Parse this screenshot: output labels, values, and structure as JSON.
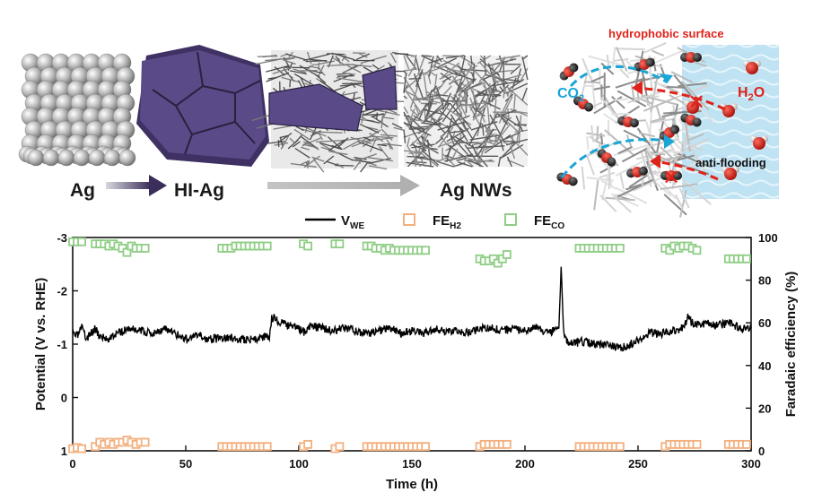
{
  "schematic": {
    "material_labels": [
      "Ag",
      "HI-Ag",
      "Ag NWs"
    ],
    "surface_label": "hydrophobic surface",
    "co2_label": "CO",
    "co2_sub": "2",
    "h2o_label": "H",
    "h2o_sub": "2",
    "h2o_tail": "O",
    "flooding_label": "anti-flooding",
    "colors": {
      "co2": "#19a6d6",
      "h2o": "#e0231a",
      "surface": "#e0231a",
      "purple": "#5b4a88",
      "water": "#bfe3f3"
    }
  },
  "chart_data": {
    "type": "line",
    "xlabel": "Time (h)",
    "ylabel_left": "Potential (V vs. RHE)",
    "ylabel_right": "Faradaic efficiency (%)",
    "xlim": [
      0,
      300
    ],
    "ylim_left": [
      1,
      -3
    ],
    "ylim_right": [
      0,
      100
    ],
    "x_ticks": [
      0,
      50,
      100,
      150,
      200,
      250,
      300
    ],
    "y_ticks_left": [
      1,
      0,
      -1,
      -2,
      -3
    ],
    "y_ticks_left_labels": [
      "1",
      "0",
      "-1",
      "-2",
      "-3"
    ],
    "y_ticks_right": [
      0,
      20,
      40,
      60,
      80,
      100
    ],
    "legend": [
      {
        "name": "V",
        "sub": "WE",
        "marker": "line",
        "color": "#000000"
      },
      {
        "name": "FE",
        "sub": "H2",
        "marker": "square",
        "color": "#f3b07f"
      },
      {
        "name": "FE",
        "sub": "CO",
        "marker": "square",
        "color": "#8fce85"
      }
    ],
    "legend_position": "top-center",
    "series": [
      {
        "name": "VWE",
        "axis": "left",
        "color": "#000000",
        "x": [
          0,
          2,
          4,
          6,
          8,
          10,
          12,
          15,
          20,
          25,
          30,
          35,
          40,
          45,
          50,
          55,
          60,
          65,
          70,
          75,
          80,
          85,
          87,
          88,
          90,
          95,
          100,
          103,
          105,
          110,
          115,
          120,
          125,
          130,
          135,
          140,
          145,
          150,
          155,
          160,
          165,
          170,
          175,
          180,
          185,
          190,
          195,
          200,
          205,
          210,
          215,
          216,
          217,
          218,
          220,
          225,
          230,
          235,
          240,
          245,
          250,
          255,
          260,
          265,
          270,
          272,
          275,
          280,
          285,
          290,
          295,
          300
        ],
        "y": [
          -1.2,
          -1.15,
          -1.3,
          -1.1,
          -1.2,
          -1.3,
          -1.15,
          -1.1,
          -1.2,
          -1.3,
          -1.25,
          -1.2,
          -1.3,
          -1.2,
          -1.1,
          -1.15,
          -1.1,
          -1.1,
          -1.12,
          -1.08,
          -1.1,
          -1.12,
          -1.15,
          -1.5,
          -1.45,
          -1.35,
          -1.3,
          -1.2,
          -1.35,
          -1.3,
          -1.25,
          -1.3,
          -1.25,
          -1.2,
          -1.25,
          -1.3,
          -1.2,
          -1.25,
          -1.2,
          -1.3,
          -1.2,
          -1.25,
          -1.2,
          -1.3,
          -1.3,
          -1.25,
          -1.3,
          -1.25,
          -1.3,
          -1.2,
          -1.3,
          -2.45,
          -1.3,
          -1.1,
          -1.0,
          -1.05,
          -1.0,
          -1.0,
          -0.95,
          -0.95,
          -1.1,
          -1.2,
          -1.2,
          -1.25,
          -1.3,
          -1.5,
          -1.35,
          -1.4,
          -1.35,
          -1.4,
          -1.3,
          -1.3
        ]
      },
      {
        "name": "FEH2",
        "axis": "right",
        "color": "#f3b07f",
        "x": [
          0,
          2,
          4,
          10,
          12,
          14,
          16,
          18,
          20,
          22,
          24,
          26,
          28,
          30,
          32,
          66,
          68,
          70,
          72,
          74,
          76,
          78,
          80,
          82,
          84,
          86,
          102,
          104,
          116,
          118,
          130,
          132,
          134,
          136,
          138,
          140,
          142,
          144,
          146,
          148,
          150,
          152,
          154,
          156,
          180,
          182,
          184,
          186,
          188,
          190,
          192,
          224,
          226,
          228,
          230,
          232,
          234,
          236,
          238,
          240,
          242,
          262,
          264,
          266,
          268,
          270,
          272,
          274,
          276,
          290,
          292,
          294,
          296,
          298
        ],
        "y": [
          1,
          1.5,
          1,
          2,
          4,
          3,
          4,
          3,
          4,
          4,
          5,
          4,
          3,
          4,
          4,
          2,
          2,
          2,
          2,
          2,
          2,
          2,
          2,
          2,
          2,
          2,
          2,
          3,
          1,
          2,
          2,
          2,
          2,
          2,
          2,
          2,
          2,
          2,
          2,
          2,
          2,
          2,
          2,
          2,
          2,
          3,
          3,
          3,
          3,
          3,
          3,
          2,
          2,
          2,
          2,
          2,
          2,
          2,
          2,
          2,
          2,
          2,
          3,
          3,
          3,
          3,
          3,
          3,
          3,
          3,
          3,
          3,
          3,
          3
        ]
      },
      {
        "name": "FECO",
        "axis": "right",
        "color": "#8fce85",
        "x": [
          0,
          2,
          4,
          10,
          12,
          14,
          16,
          18,
          20,
          22,
          24,
          26,
          28,
          30,
          32,
          66,
          68,
          70,
          72,
          74,
          76,
          78,
          80,
          82,
          84,
          86,
          102,
          104,
          116,
          118,
          130,
          132,
          134,
          136,
          138,
          140,
          142,
          144,
          146,
          148,
          150,
          152,
          154,
          156,
          180,
          182,
          184,
          186,
          188,
          190,
          192,
          224,
          226,
          228,
          230,
          232,
          234,
          236,
          238,
          240,
          242,
          262,
          264,
          266,
          268,
          270,
          272,
          274,
          276,
          290,
          292,
          294,
          296,
          298
        ],
        "y": [
          98,
          98,
          98,
          97,
          97,
          97,
          96,
          97,
          96,
          95,
          93,
          96,
          95,
          95,
          95,
          95,
          95,
          95,
          96,
          96,
          96,
          96,
          96,
          96,
          96,
          96,
          97,
          96,
          97,
          97,
          96,
          96,
          95,
          95,
          94,
          95,
          94,
          94,
          94,
          94,
          94,
          94,
          94,
          94,
          90,
          89,
          89,
          90,
          88,
          90,
          92,
          95,
          95,
          95,
          95,
          95,
          95,
          95,
          95,
          95,
          95,
          95,
          94,
          96,
          95,
          96,
          96,
          95,
          94,
          90,
          90,
          90,
          90,
          90
        ]
      }
    ]
  }
}
